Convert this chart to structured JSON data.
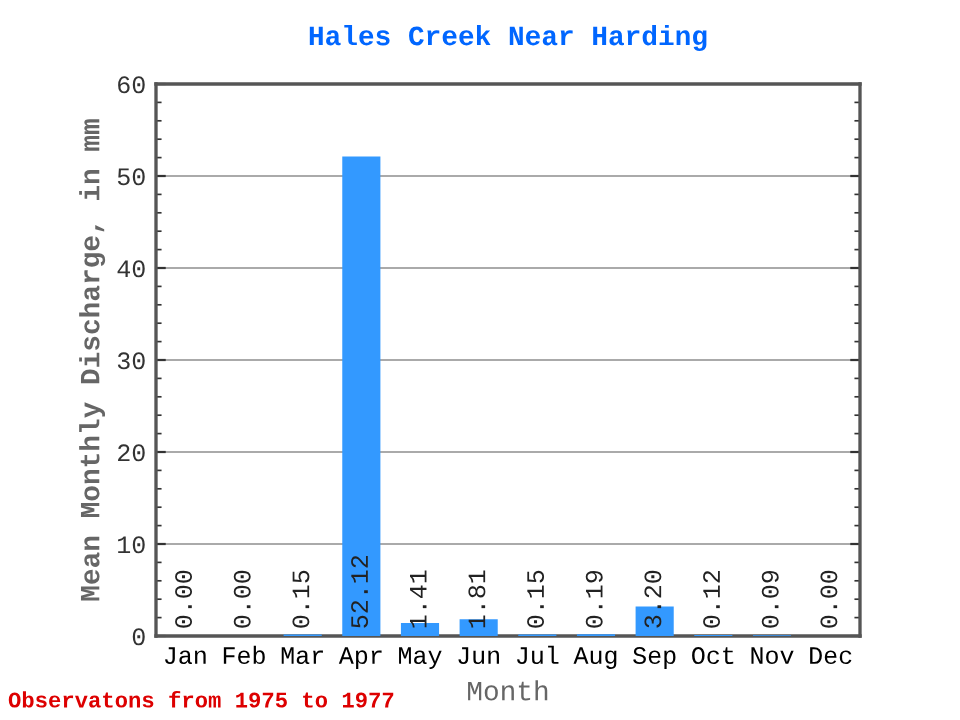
{
  "chart_data": {
    "type": "bar",
    "title": "Hales Creek Near Harding",
    "xlabel": "Month",
    "ylabel": "Mean Monthly Discharge, in mm",
    "categories": [
      "Jan",
      "Feb",
      "Mar",
      "Apr",
      "May",
      "Jun",
      "Jul",
      "Aug",
      "Sep",
      "Oct",
      "Nov",
      "Dec"
    ],
    "values": [
      0.0,
      0.0,
      0.15,
      52.12,
      1.41,
      1.81,
      0.15,
      0.19,
      3.2,
      0.12,
      0.09,
      0.0
    ],
    "value_labels": [
      "0.00",
      "0.00",
      "0.15",
      "52.12",
      "1.41",
      "1.81",
      "0.15",
      "0.19",
      "3.20",
      "0.12",
      "0.09",
      "0.00"
    ],
    "color": "#3399ff",
    "ylim": [
      0,
      60
    ],
    "yticks": [
      0,
      10,
      20,
      30,
      40,
      50,
      60
    ],
    "grid": "y",
    "annotations": [
      "Observatons from 1975 to 1977"
    ]
  }
}
